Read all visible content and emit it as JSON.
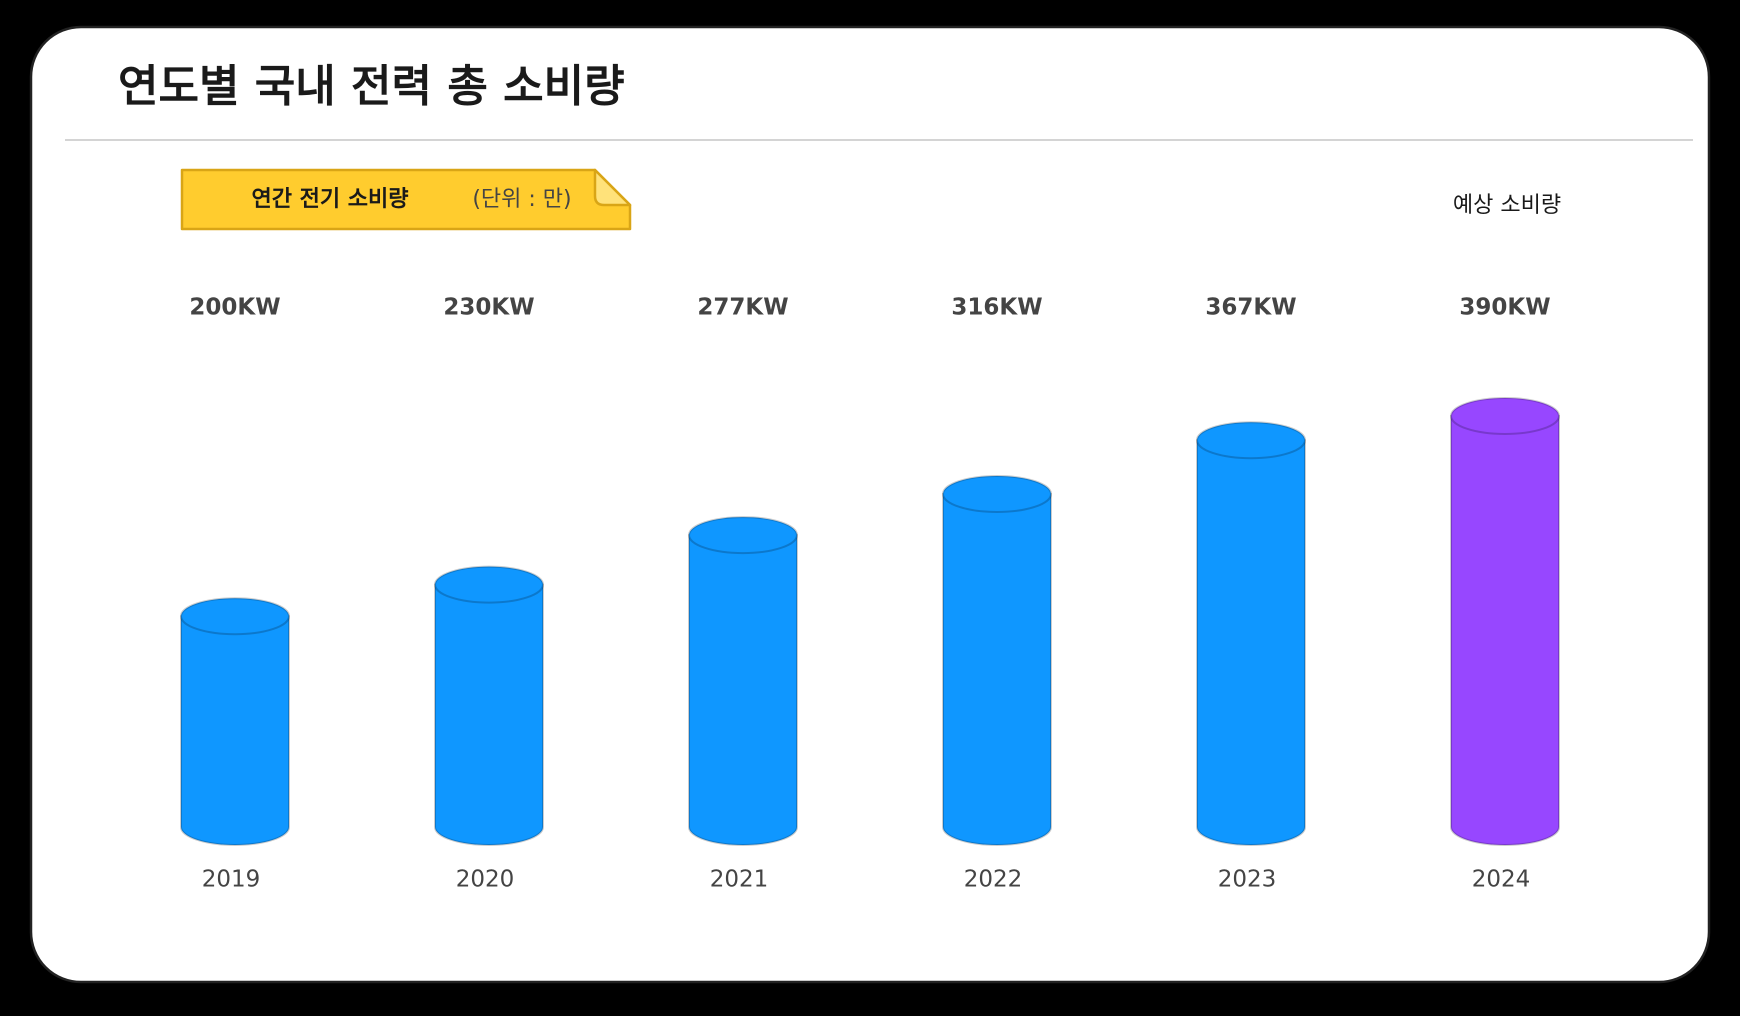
{
  "chart_data": {
    "type": "bar",
    "title": "연도별 국내 전력 총 소비량",
    "legend_label": "연간 전기 소비량",
    "unit_note": "(단위 : 만)",
    "annotation": "예상 소비량",
    "categories": [
      "2019",
      "2020",
      "2021",
      "2022",
      "2023",
      "2024"
    ],
    "values": [
      200,
      230,
      277,
      316,
      367,
      390
    ],
    "value_labels": [
      "200KW",
      "230KW",
      "277KW",
      "316KW",
      "367KW",
      "390KW"
    ],
    "colors": [
      "#0f97ff",
      "#0f97ff",
      "#0f97ff",
      "#0f97ff",
      "#0f97ff",
      "#9747ff"
    ]
  }
}
